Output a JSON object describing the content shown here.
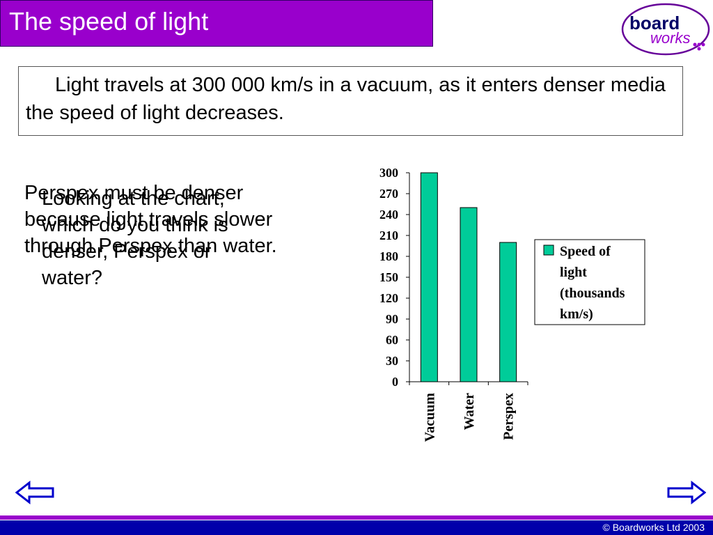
{
  "slide": {
    "title": "The speed of light",
    "intro": "Light travels at  300 000 km/s in a vacuum, as it enters denser media the speed of light decreases.",
    "question": "Looking at the chart, which do you think is denser, Perspex or water?",
    "answer": "Perspex must be denser because light travels slower through Perspex than water."
  },
  "logo": {
    "word1": "board",
    "word2": "works"
  },
  "footer": {
    "copyright": "© Boardworks Ltd 2003"
  },
  "colors": {
    "title_bg": "#9900cc",
    "bar_fill": "#00cc99",
    "footer_bg": "#0000aa",
    "logo": "#660099"
  },
  "icons": {
    "prev": "left-arrow-icon",
    "next": "right-arrow-icon"
  },
  "chart_data": {
    "type": "bar",
    "categories": [
      "Vacuum",
      "Water",
      "Perspex"
    ],
    "series": [
      {
        "name": "Speed of light (thousands km/s)",
        "values": [
          300,
          250,
          200
        ]
      }
    ],
    "legend_lines": [
      "Speed of",
      "light",
      "(thousands",
      "km/s)"
    ],
    "ylim": [
      0,
      300
    ],
    "yticks": [
      0,
      30,
      60,
      90,
      120,
      150,
      180,
      210,
      240,
      270,
      300
    ],
    "grid": false,
    "legend": "right"
  }
}
